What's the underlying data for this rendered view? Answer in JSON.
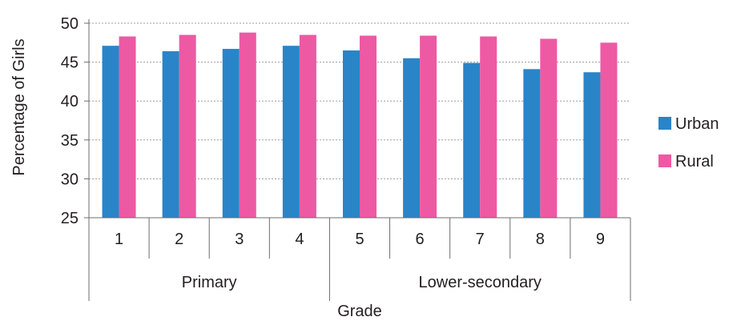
{
  "chart_data": {
    "type": "bar",
    "title": "",
    "xlabel": "Grade",
    "ylabel": "Percentage of Girls",
    "ylim": [
      25,
      50
    ],
    "yticks": [
      25,
      30,
      35,
      40,
      45,
      50
    ],
    "grid": true,
    "legend_position": "right",
    "categories": [
      "1",
      "2",
      "3",
      "4",
      "5",
      "6",
      "7",
      "8",
      "9"
    ],
    "groups": [
      {
        "label": "Primary",
        "categories": [
          "1",
          "2",
          "3",
          "4"
        ]
      },
      {
        "label": "Lower-secondary",
        "categories": [
          "5",
          "6",
          "7",
          "8",
          "9"
        ]
      }
    ],
    "series": [
      {
        "name": "Urban",
        "color": "#2a84c8",
        "values": [
          47.1,
          46.4,
          46.7,
          47.1,
          46.5,
          45.5,
          44.9,
          44.1,
          43.7
        ]
      },
      {
        "name": "Rural",
        "color": "#ee59a4",
        "values": [
          48.3,
          48.5,
          48.8,
          48.5,
          48.4,
          48.4,
          48.3,
          48.0,
          47.5
        ]
      }
    ]
  }
}
